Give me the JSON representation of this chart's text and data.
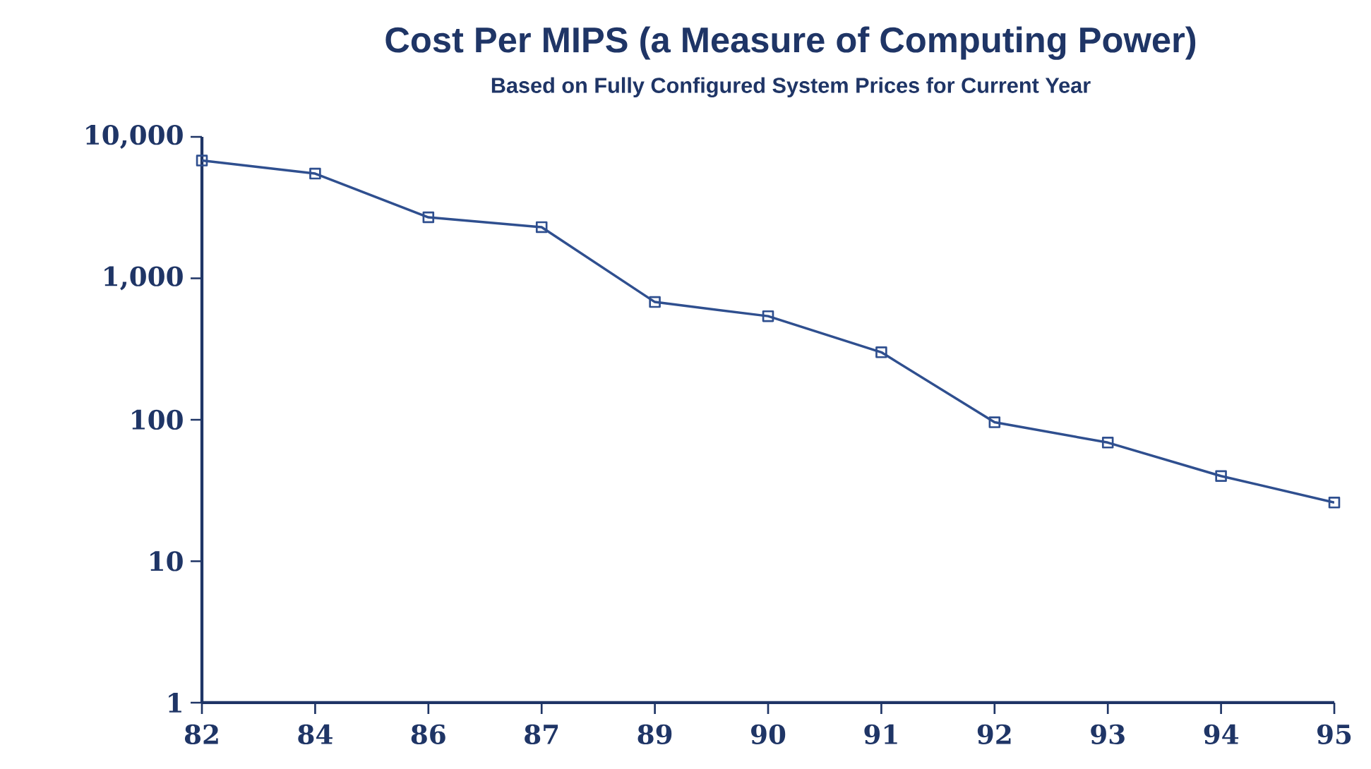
{
  "chart_data": {
    "type": "line",
    "title": "Cost Per MIPS (a Measure of Computing Power)",
    "subtitle": "Based on Fully Configured System Prices for Current Year",
    "categories": [
      "82",
      "84",
      "86",
      "87",
      "89",
      "90",
      "91",
      "92",
      "93",
      "94",
      "95"
    ],
    "values": [
      6800,
      5500,
      2700,
      2300,
      680,
      540,
      300,
      96,
      69,
      40,
      26
    ],
    "color": "#2f4f8f",
    "marker": "square",
    "line_style": "solid",
    "log": "y",
    "ylim": [
      1,
      10000
    ],
    "yticks": [
      1,
      10,
      100,
      {
        "value": 1000,
        "label": "1,000"
      },
      {
        "value": 10000,
        "label": "10,000"
      }
    ]
  }
}
